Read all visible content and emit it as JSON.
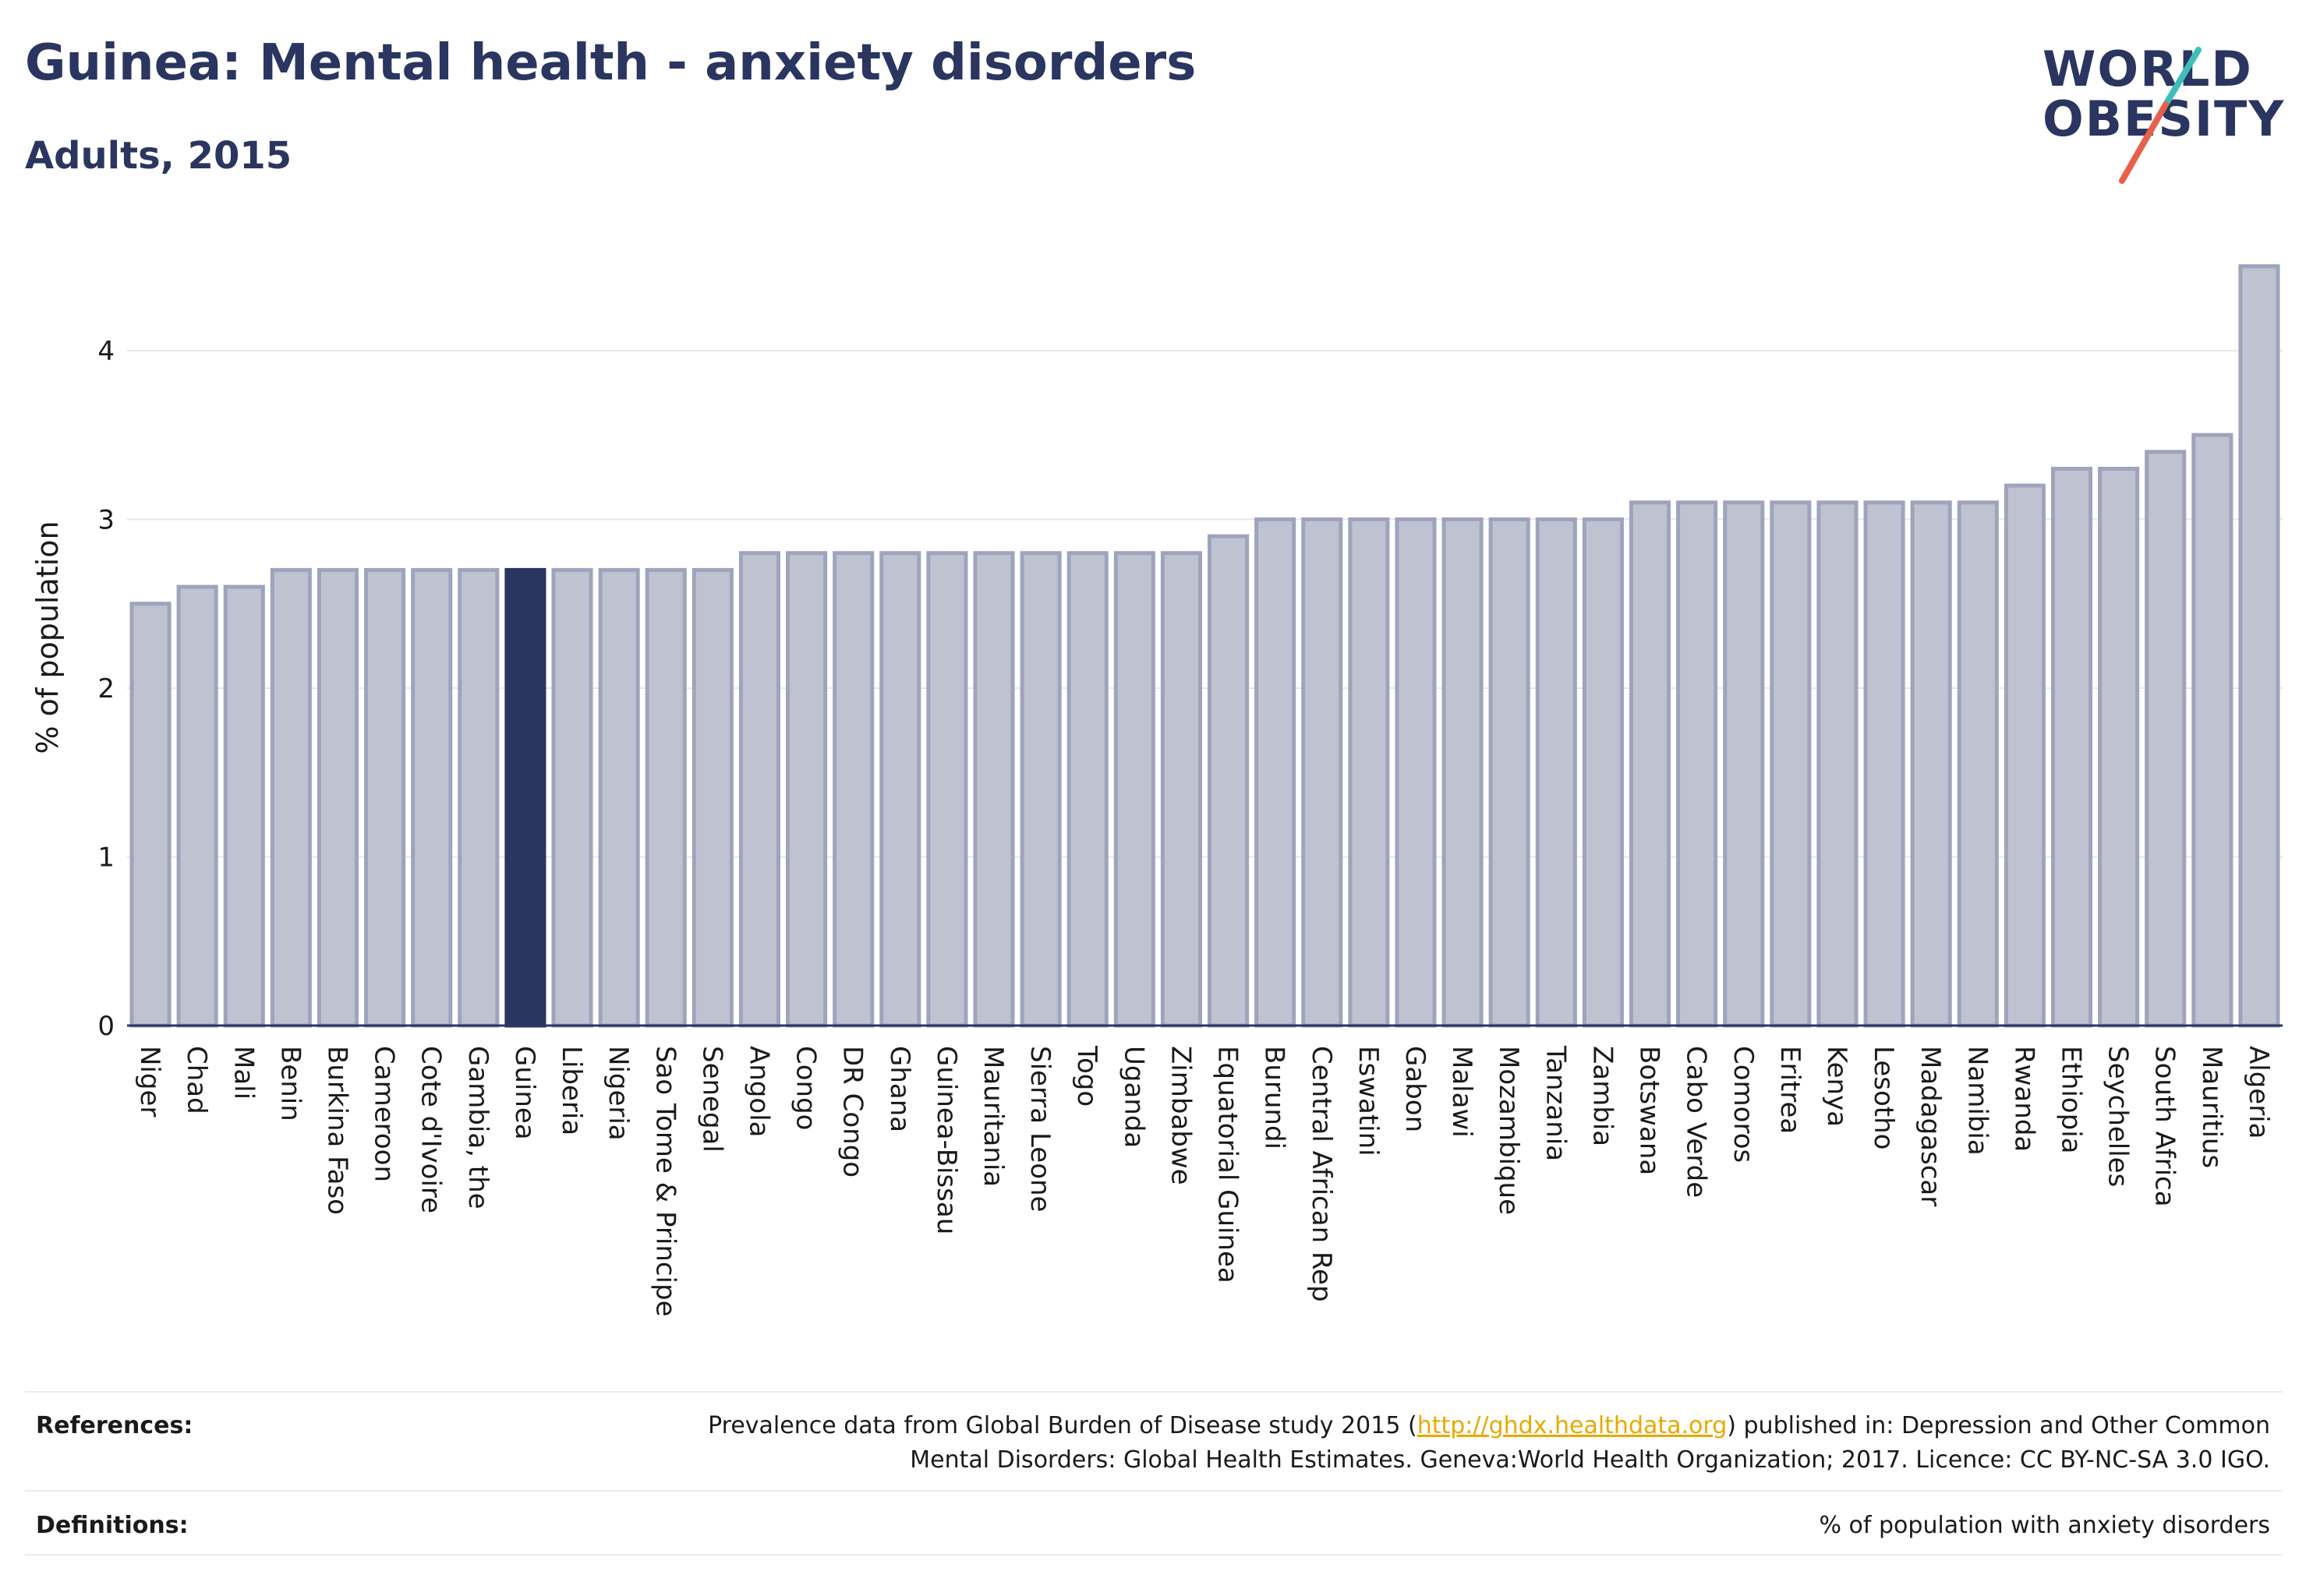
{
  "header": {
    "title": "Guinea: Mental health - anxiety disorders",
    "subtitle": "Adults, 2015"
  },
  "logo": {
    "line1": "WORLD",
    "line2": "OBESITY",
    "accent_colors": [
      "#3cbfb8",
      "#e8604c"
    ]
  },
  "colors": {
    "bar": "#bfc3d1",
    "bar_border": "#9ea4bc",
    "highlight": "#2a3560",
    "grid": "#e6e8ee",
    "axis": "#2a3560"
  },
  "chart_data": {
    "type": "bar",
    "ylabel": "% of population",
    "xlabel": "",
    "ylim": [
      0,
      4.6
    ],
    "yticks": [
      0,
      1,
      2,
      3,
      4
    ],
    "grid": true,
    "highlight_category": "Guinea",
    "categories": [
      "Niger",
      "Chad",
      "Mali",
      "Benin",
      "Burkina Faso",
      "Cameroon",
      "Cote d'Ivoire",
      "Gambia, the",
      "Guinea",
      "Liberia",
      "Nigeria",
      "Sao Tome & Principe",
      "Senegal",
      "Angola",
      "Congo",
      "DR Congo",
      "Ghana",
      "Guinea-Bissau",
      "Mauritania",
      "Sierra Leone",
      "Togo",
      "Uganda",
      "Zimbabwe",
      "Equatorial Guinea",
      "Burundi",
      "Central African Rep",
      "Eswatini",
      "Gabon",
      "Malawi",
      "Mozambique",
      "Tanzania",
      "Zambia",
      "Botswana",
      "Cabo Verde",
      "Comoros",
      "Eritrea",
      "Kenya",
      "Lesotho",
      "Madagascar",
      "Namibia",
      "Rwanda",
      "Ethiopia",
      "Seychelles",
      "South Africa",
      "Mauritius",
      "Algeria"
    ],
    "values": [
      2.5,
      2.6,
      2.6,
      2.7,
      2.7,
      2.7,
      2.7,
      2.7,
      2.7,
      2.7,
      2.7,
      2.7,
      2.7,
      2.8,
      2.8,
      2.8,
      2.8,
      2.8,
      2.8,
      2.8,
      2.8,
      2.8,
      2.8,
      2.9,
      3.0,
      3.0,
      3.0,
      3.0,
      3.0,
      3.0,
      3.0,
      3.0,
      3.1,
      3.1,
      3.1,
      3.1,
      3.1,
      3.1,
      3.1,
      3.1,
      3.2,
      3.3,
      3.3,
      3.4,
      3.5,
      4.5
    ]
  },
  "footer": {
    "references_label": "References:",
    "references_text_before": "Prevalence data from Global Burden of Disease study 2015 (",
    "references_link": "http://ghdx.healthdata.org",
    "references_text_after": ") published in: Depression and Other Common",
    "references_line2": "Mental Disorders: Global Health Estimates. Geneva:World Health Organization; 2017. Licence: CC BY-NC-SA 3.0 IGO.",
    "definitions_label": "Definitions:",
    "definitions_text": "% of population with anxiety disorders"
  }
}
